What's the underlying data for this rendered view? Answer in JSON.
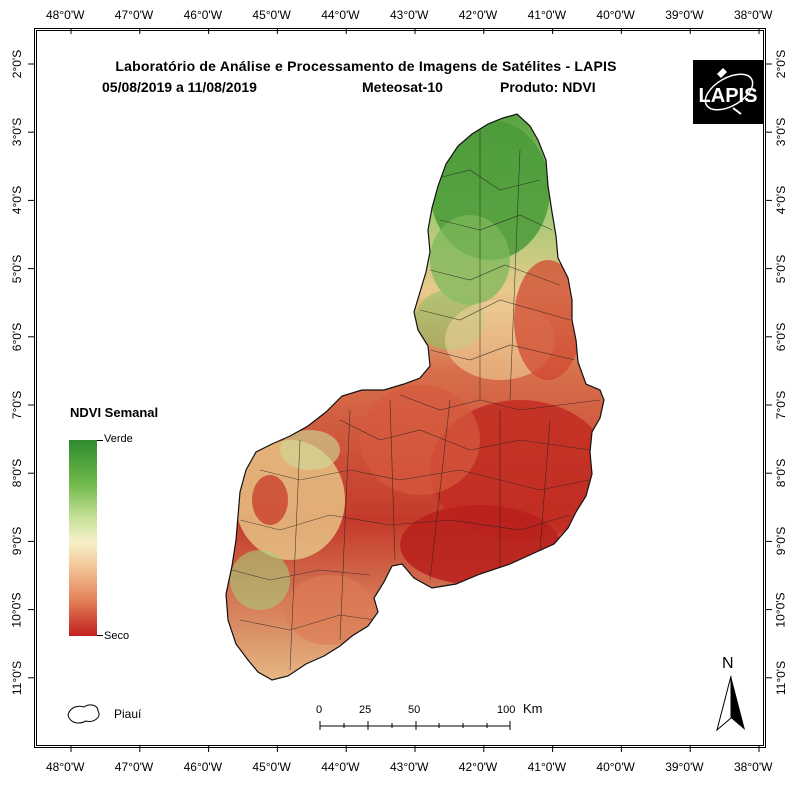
{
  "map": {
    "title": "Laboratório de Análise e Processamento de Imagens de Satélites - LAPIS",
    "period": "05/08/2019  a  11/08/2019",
    "satellite": "Meteosat-10",
    "product": "Produto: NDVI",
    "logo_text": "LAPIS",
    "longitude_labels": [
      "48°0'W",
      "47°0'W",
      "46°0'W",
      "45°0'W",
      "44°0'W",
      "43°0'W",
      "42°0'W",
      "41°0'W",
      "40°0'W",
      "39°0'W",
      "38°0'W"
    ],
    "latitude_labels": [
      "2°0'S",
      "3°0'S",
      "4°0'S",
      "5°0'S",
      "6°0'S",
      "7°0'S",
      "8°0'S",
      "9°0'S",
      "10°0'S",
      "11°0'S"
    ],
    "region_name": "Piauí",
    "north_label": "N"
  },
  "legend": {
    "title": "NDVI Semanal",
    "high_label": "Verde",
    "low_label": "Seco",
    "colors": [
      "#2e8b2e",
      "#c9e29a",
      "#f6f0c8",
      "#e48a5e",
      "#c21f1f"
    ]
  },
  "scale_bar": {
    "ticks": [
      "0",
      "25",
      "50",
      "100"
    ],
    "unit": "Km"
  }
}
